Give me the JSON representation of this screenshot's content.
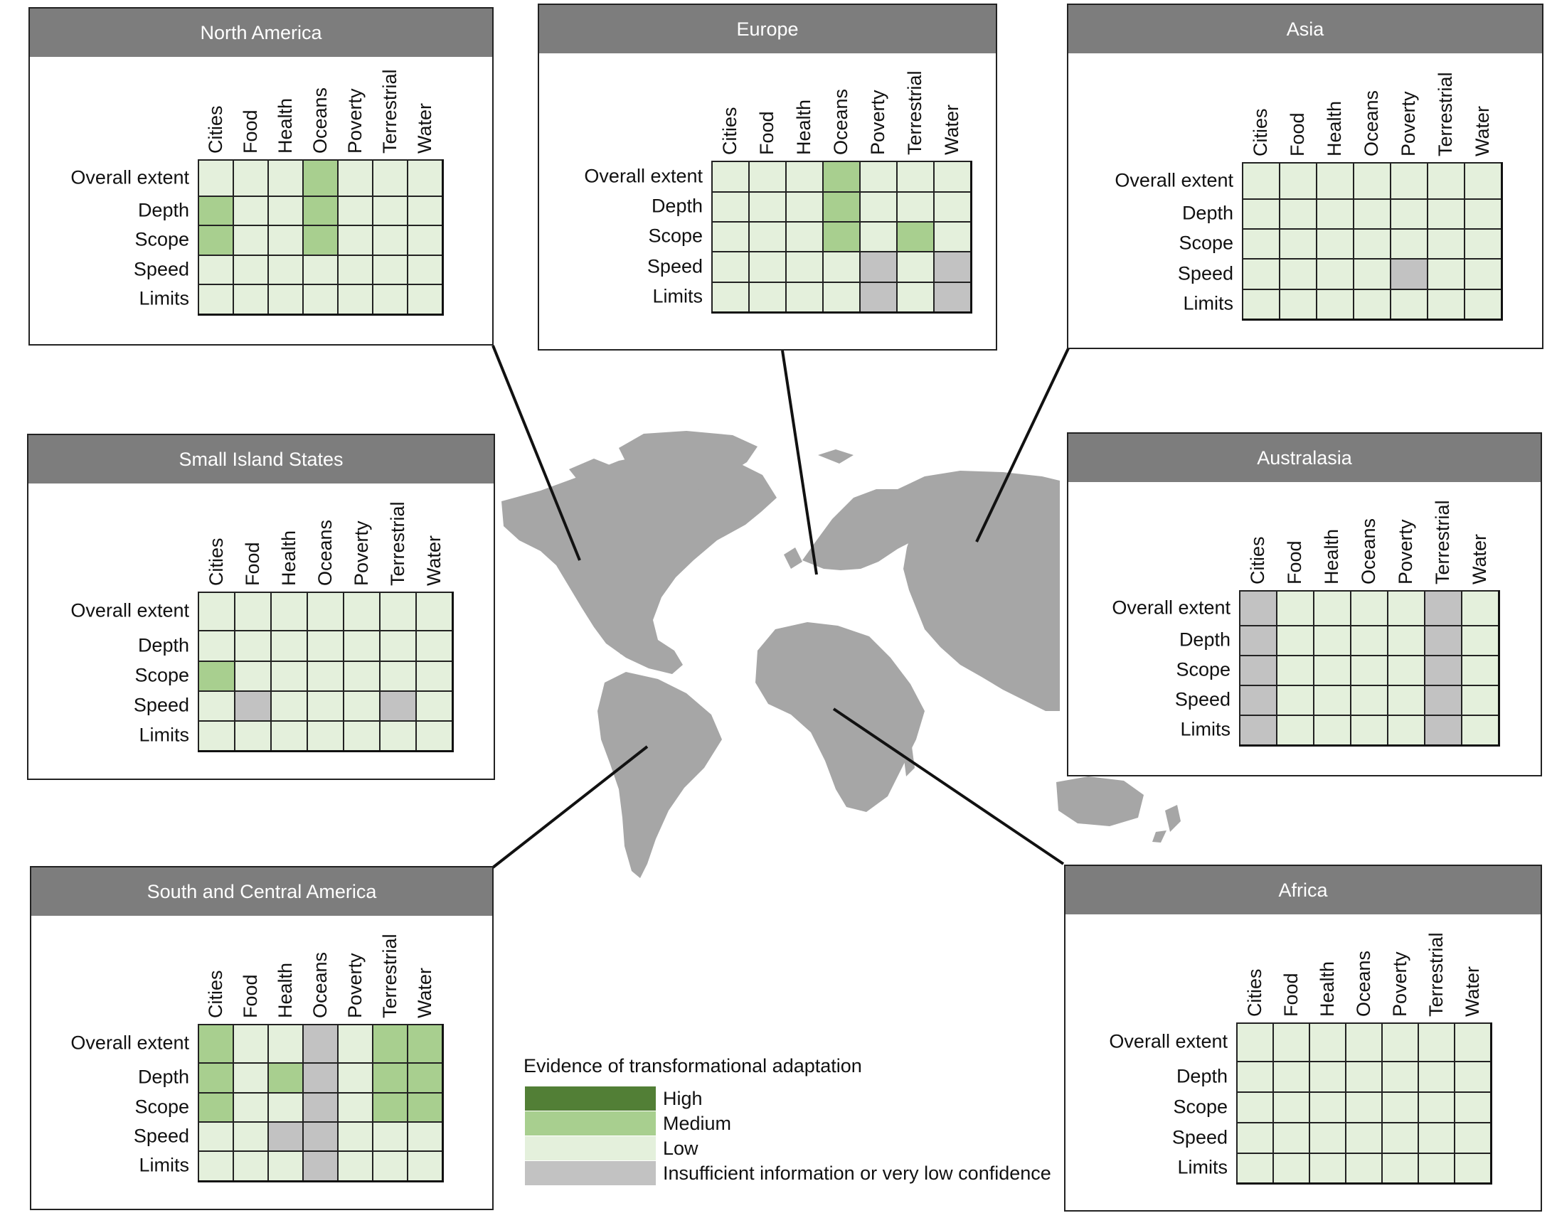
{
  "columns": [
    "Cities",
    "Food",
    "Health",
    "Oceans",
    "Poverty",
    "Terrestrial",
    "Water"
  ],
  "rows": [
    "Overall extent",
    "Depth",
    "Scope",
    "Speed",
    "Limits"
  ],
  "colors": {
    "high": "#527f36",
    "medium": "#a8cf8f",
    "low": "#e4f0dc",
    "insufficient": "#c2c2c2",
    "map_land": "#a6a6a6",
    "header": "#7d7d7d"
  },
  "legend": {
    "title": "Evidence of transformational adaptation",
    "items": [
      {
        "key": "high",
        "label": "High"
      },
      {
        "key": "medium",
        "label": "Medium"
      },
      {
        "key": "low",
        "label": "Low"
      },
      {
        "key": "insufficient",
        "label": "Insufficient information or very low confidence"
      }
    ]
  },
  "regions": [
    {
      "id": "north-america",
      "title": "North America",
      "matrix": [
        [
          "low",
          "low",
          "low",
          "medium",
          "low",
          "low",
          "low"
        ],
        [
          "medium",
          "low",
          "low",
          "medium",
          "low",
          "low",
          "low"
        ],
        [
          "medium",
          "low",
          "low",
          "medium",
          "low",
          "low",
          "low"
        ],
        [
          "low",
          "low",
          "low",
          "low",
          "low",
          "low",
          "low"
        ],
        [
          "low",
          "low",
          "low",
          "low",
          "low",
          "low",
          "low"
        ]
      ]
    },
    {
      "id": "europe",
      "title": "Europe",
      "matrix": [
        [
          "low",
          "low",
          "low",
          "medium",
          "low",
          "low",
          "low"
        ],
        [
          "low",
          "low",
          "low",
          "medium",
          "low",
          "low",
          "low"
        ],
        [
          "low",
          "low",
          "low",
          "medium",
          "low",
          "medium",
          "low"
        ],
        [
          "low",
          "low",
          "low",
          "low",
          "insufficient",
          "low",
          "insufficient"
        ],
        [
          "low",
          "low",
          "low",
          "low",
          "insufficient",
          "low",
          "insufficient"
        ]
      ]
    },
    {
      "id": "asia",
      "title": "Asia",
      "matrix": [
        [
          "low",
          "low",
          "low",
          "low",
          "low",
          "low",
          "low"
        ],
        [
          "low",
          "low",
          "low",
          "low",
          "low",
          "low",
          "low"
        ],
        [
          "low",
          "low",
          "low",
          "low",
          "low",
          "low",
          "low"
        ],
        [
          "low",
          "low",
          "low",
          "low",
          "insufficient",
          "low",
          "low"
        ],
        [
          "low",
          "low",
          "low",
          "low",
          "low",
          "low",
          "low"
        ]
      ]
    },
    {
      "id": "small-island-states",
      "title": "Small Island States",
      "matrix": [
        [
          "low",
          "low",
          "low",
          "low",
          "low",
          "low",
          "low"
        ],
        [
          "low",
          "low",
          "low",
          "low",
          "low",
          "low",
          "low"
        ],
        [
          "medium",
          "low",
          "low",
          "low",
          "low",
          "low",
          "low"
        ],
        [
          "low",
          "insufficient",
          "low",
          "low",
          "low",
          "insufficient",
          "low"
        ],
        [
          "low",
          "low",
          "low",
          "low",
          "low",
          "low",
          "low"
        ]
      ]
    },
    {
      "id": "australasia",
      "title": "Australasia",
      "matrix": [
        [
          "insufficient",
          "low",
          "low",
          "low",
          "low",
          "insufficient",
          "low"
        ],
        [
          "insufficient",
          "low",
          "low",
          "low",
          "low",
          "insufficient",
          "low"
        ],
        [
          "insufficient",
          "low",
          "low",
          "low",
          "low",
          "insufficient",
          "low"
        ],
        [
          "insufficient",
          "low",
          "low",
          "low",
          "low",
          "insufficient",
          "low"
        ],
        [
          "insufficient",
          "low",
          "low",
          "low",
          "low",
          "insufficient",
          "low"
        ]
      ]
    },
    {
      "id": "south-and-central-america",
      "title": "South and Central America",
      "matrix": [
        [
          "medium",
          "low",
          "low",
          "insufficient",
          "low",
          "medium",
          "medium"
        ],
        [
          "medium",
          "low",
          "medium",
          "insufficient",
          "low",
          "medium",
          "medium"
        ],
        [
          "medium",
          "low",
          "low",
          "insufficient",
          "low",
          "medium",
          "medium"
        ],
        [
          "low",
          "low",
          "insufficient",
          "insufficient",
          "low",
          "low",
          "low"
        ],
        [
          "low",
          "low",
          "low",
          "insufficient",
          "low",
          "low",
          "low"
        ]
      ]
    },
    {
      "id": "africa",
      "title": "Africa",
      "matrix": [
        [
          "low",
          "low",
          "low",
          "low",
          "low",
          "low",
          "low"
        ],
        [
          "low",
          "low",
          "low",
          "low",
          "low",
          "low",
          "low"
        ],
        [
          "low",
          "low",
          "low",
          "low",
          "low",
          "low",
          "low"
        ],
        [
          "low",
          "low",
          "low",
          "low",
          "low",
          "low",
          "low"
        ],
        [
          "low",
          "low",
          "low",
          "low",
          "low",
          "low",
          "low"
        ]
      ]
    }
  ]
}
